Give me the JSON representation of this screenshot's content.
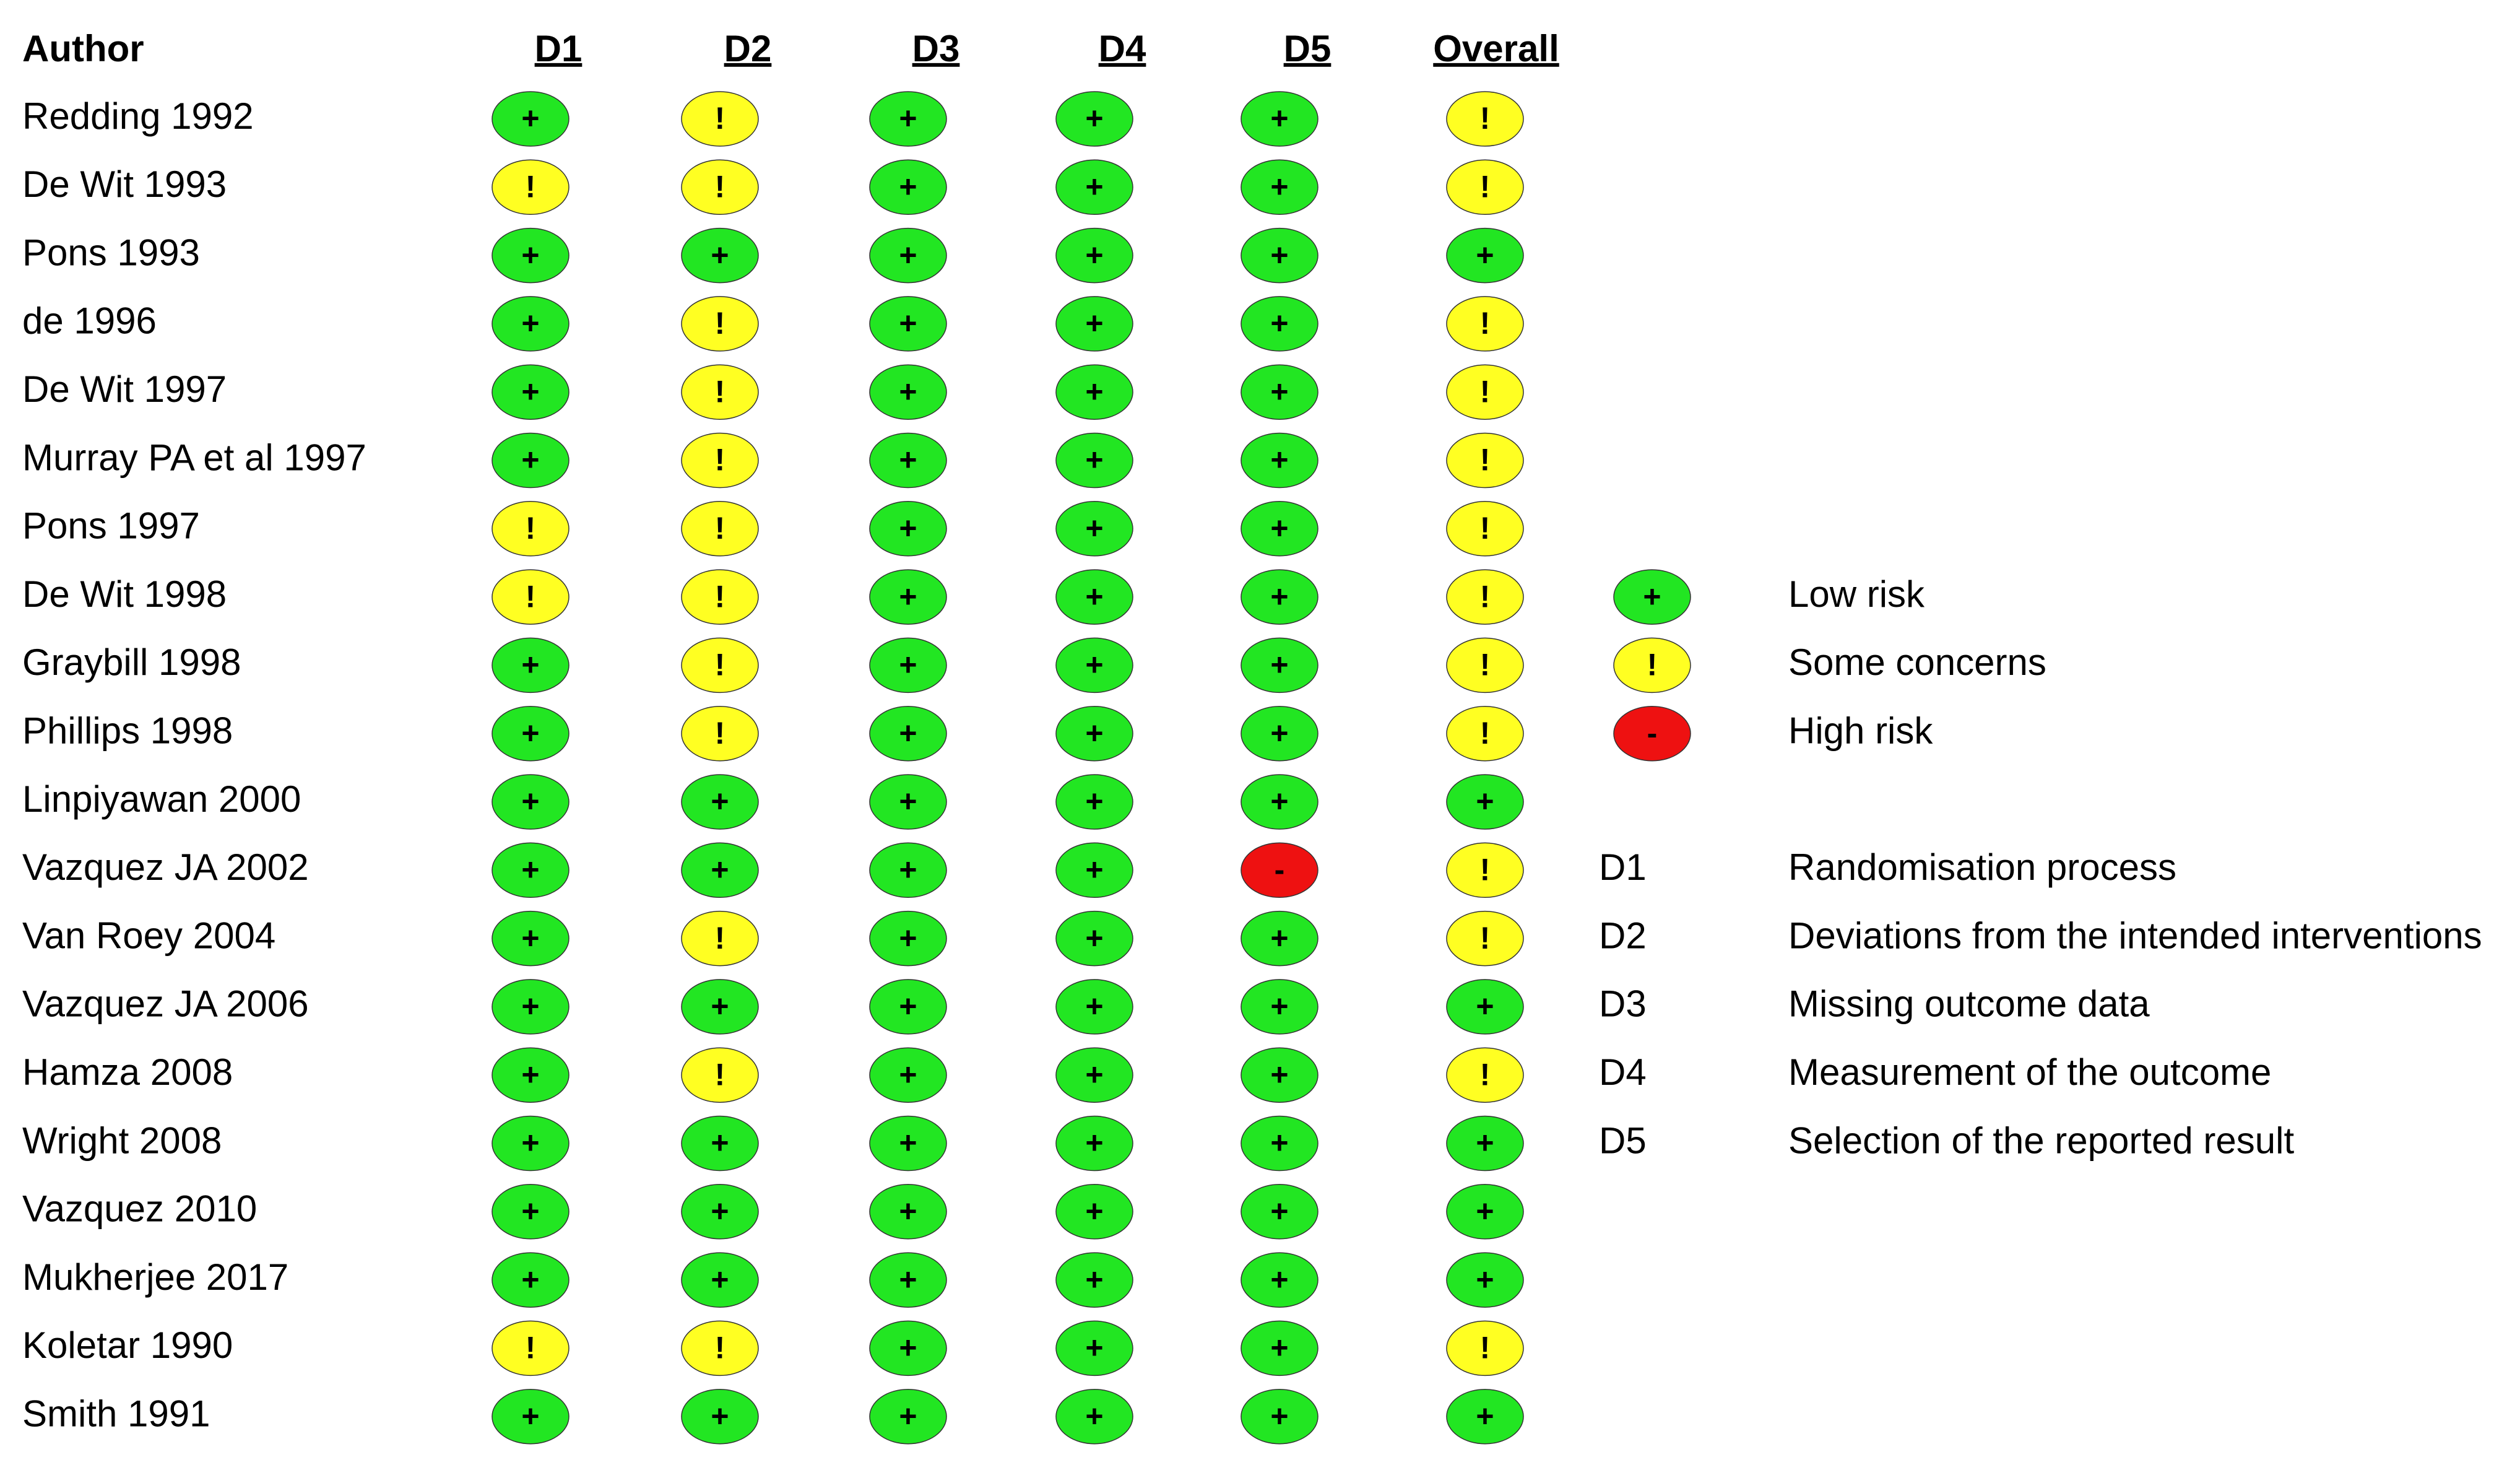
{
  "header": {
    "author": "Author",
    "columns": [
      "D1",
      "D2",
      "D3",
      "D4",
      "D5",
      "Overall"
    ]
  },
  "rows": [
    {
      "author": "Redding 1992",
      "judgments": [
        "+",
        "!",
        "+",
        "+",
        "+",
        "!"
      ]
    },
    {
      "author": "De Wit 1993",
      "judgments": [
        "!",
        "!",
        "+",
        "+",
        "+",
        "!"
      ]
    },
    {
      "author": "Pons 1993",
      "judgments": [
        "+",
        "+",
        "+",
        "+",
        "+",
        "+"
      ]
    },
    {
      "author": "de  1996",
      "judgments": [
        "+",
        "!",
        "+",
        "+",
        "+",
        "!"
      ]
    },
    {
      "author": "De Wit 1997",
      "judgments": [
        "+",
        "!",
        "+",
        "+",
        "+",
        "!"
      ]
    },
    {
      "author": "Murray PA et al 1997",
      "judgments": [
        "+",
        "!",
        "+",
        "+",
        "+",
        "!"
      ]
    },
    {
      "author": "Pons 1997",
      "judgments": [
        "!",
        "!",
        "+",
        "+",
        "+",
        "!"
      ]
    },
    {
      "author": "De Wit 1998",
      "judgments": [
        "!",
        "!",
        "+",
        "+",
        "+",
        "!"
      ]
    },
    {
      "author": "Graybill 1998",
      "judgments": [
        "+",
        "!",
        "+",
        "+",
        "+",
        "!"
      ]
    },
    {
      "author": "Phillips 1998",
      "judgments": [
        "+",
        "!",
        "+",
        "+",
        "+",
        "!"
      ]
    },
    {
      "author": "Linpiyawan 2000",
      "judgments": [
        "+",
        "+",
        "+",
        "+",
        "+",
        "+"
      ]
    },
    {
      "author": "Vazquez JA 2002",
      "judgments": [
        "+",
        "+",
        "+",
        "+",
        "-",
        "!"
      ]
    },
    {
      "author": "Van Roey 2004",
      "judgments": [
        "+",
        "!",
        "+",
        "+",
        "+",
        "!"
      ]
    },
    {
      "author": "Vazquez JA 2006",
      "judgments": [
        "+",
        "+",
        "+",
        "+",
        "+",
        "+"
      ]
    },
    {
      "author": "Hamza 2008",
      "judgments": [
        "+",
        "!",
        "+",
        "+",
        "+",
        "!"
      ]
    },
    {
      "author": "Wright 2008",
      "judgments": [
        "+",
        "+",
        "+",
        "+",
        "+",
        "+"
      ]
    },
    {
      "author": "Vazquez 2010",
      "judgments": [
        "+",
        "+",
        "+",
        "+",
        "+",
        "+"
      ]
    },
    {
      "author": "Mukherjee 2017",
      "judgments": [
        "+",
        "+",
        "+",
        "+",
        "+",
        "+"
      ]
    },
    {
      "author": "Koletar 1990",
      "judgments": [
        "!",
        "!",
        "+",
        "+",
        "+",
        "!"
      ]
    },
    {
      "author": "Smith 1991",
      "judgments": [
        "+",
        "+",
        "+",
        "+",
        "+",
        "+"
      ]
    }
  ],
  "legend": {
    "judgments": [
      {
        "symbol": "+",
        "label": "Low risk",
        "color": "#22e622"
      },
      {
        "symbol": "!",
        "label": "Some concerns",
        "color": "#ffff22"
      },
      {
        "symbol": "-",
        "label": "High risk",
        "color": "#ee1111"
      }
    ],
    "domains": [
      {
        "code": "D1",
        "label": "Randomisation process"
      },
      {
        "code": "D2",
        "label": "Deviations from the intended interventions"
      },
      {
        "code": "D3",
        "label": "Missing outcome data"
      },
      {
        "code": "D4",
        "label": "Measurement of the outcome"
      },
      {
        "code": "D5",
        "label": "Selection of the reported result"
      }
    ]
  }
}
